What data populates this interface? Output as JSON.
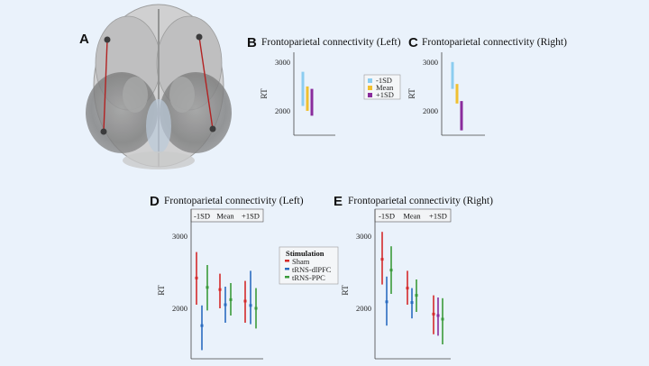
{
  "figure": {
    "panel_letters": [
      "A",
      "B",
      "C",
      "D",
      "E"
    ],
    "colors": {
      "minus1sd": "#8ccdf0",
      "mean": "#f0c030",
      "plus1sd": "#8a2c9c",
      "sham": "#d42a2a",
      "dlpfc": "#2a6cc0",
      "ppc": "#3a9a3a"
    }
  },
  "chart_data": [
    {
      "id": "B",
      "type": "errorbar",
      "title": "Frontoparietal connectivity (Left)",
      "ylabel": "RT",
      "yticks": [
        2000,
        3000
      ],
      "ylim": [
        1500,
        3200
      ],
      "legend": [
        "-1SD",
        "Mean",
        "+1SD"
      ],
      "series": [
        {
          "name": "-1SD",
          "low": 2100,
          "high": 2800,
          "color": "#8ccdf0"
        },
        {
          "name": "Mean",
          "low": 2000,
          "high": 2500,
          "color": "#f0c030"
        },
        {
          "name": "+1SD",
          "low": 1900,
          "high": 2450,
          "color": "#8a2c9c"
        }
      ]
    },
    {
      "id": "C",
      "type": "errorbar",
      "title": "Frontoparietal connectivity (Right)",
      "ylabel": "RT",
      "yticks": [
        2000,
        3000
      ],
      "ylim": [
        1500,
        3200
      ],
      "series": [
        {
          "name": "-1SD",
          "low": 2450,
          "high": 3000,
          "color": "#8ccdf0"
        },
        {
          "name": "Mean",
          "low": 2150,
          "high": 2550,
          "color": "#f0c030"
        },
        {
          "name": "+1SD",
          "low": 1600,
          "high": 2200,
          "color": "#8a2c9c"
        }
      ]
    },
    {
      "id": "D",
      "type": "errorbar",
      "title": "Frontoparietal connectivity (Left)",
      "ylabel": "RT",
      "yticks": [
        2000,
        3000
      ],
      "ylim": [
        1300,
        3200
      ],
      "facets": [
        "-1SD",
        "Mean",
        "+1SD"
      ],
      "legend_title": "Stimulation",
      "legend": [
        "Sham",
        "tRNS-dlPFC",
        "tRNS-PPC"
      ],
      "groups": [
        {
          "facet": "-1SD",
          "series": [
            {
              "name": "Sham",
              "low": 2050,
              "high": 2780,
              "center": 2420,
              "color": "#d42a2a"
            },
            {
              "name": "tRNS-dlPFC",
              "low": 1420,
              "high": 2040,
              "center": 1760,
              "color": "#2a6cc0"
            },
            {
              "name": "tRNS-PPC",
              "low": 1970,
              "high": 2600,
              "center": 2290,
              "color": "#3a9a3a"
            }
          ]
        },
        {
          "facet": "Mean",
          "series": [
            {
              "name": "Sham",
              "low": 2000,
              "high": 2480,
              "center": 2260,
              "color": "#d42a2a"
            },
            {
              "name": "tRNS-dlPFC",
              "low": 1800,
              "high": 2300,
              "center": 2050,
              "color": "#2a6cc0"
            },
            {
              "name": "tRNS-PPC",
              "low": 1900,
              "high": 2350,
              "center": 2120,
              "color": "#3a9a3a"
            }
          ]
        },
        {
          "facet": "+1SD",
          "series": [
            {
              "name": "Sham",
              "low": 1800,
              "high": 2380,
              "center": 2100,
              "color": "#d42a2a"
            },
            {
              "name": "tRNS-dlPFC",
              "low": 1780,
              "high": 2520,
              "center": 2040,
              "color": "#2a6cc0"
            },
            {
              "name": "tRNS-PPC",
              "low": 1720,
              "high": 2280,
              "center": 2000,
              "color": "#3a9a3a"
            }
          ]
        }
      ]
    },
    {
      "id": "E",
      "type": "errorbar",
      "title": "Frontoparietal connectivity (Right)",
      "ylabel": "RT",
      "yticks": [
        2000,
        3000
      ],
      "ylim": [
        1300,
        3200
      ],
      "facets": [
        "-1SD",
        "Mean",
        "+1SD"
      ],
      "groups": [
        {
          "facet": "-1SD",
          "series": [
            {
              "name": "Sham",
              "low": 2330,
              "high": 3060,
              "center": 2680,
              "color": "#d42a2a"
            },
            {
              "name": "tRNS-dlPFC",
              "low": 1760,
              "high": 2440,
              "center": 2090,
              "color": "#2a6cc0"
            },
            {
              "name": "tRNS-PPC",
              "low": 2200,
              "high": 2860,
              "center": 2530,
              "color": "#3a9a3a"
            }
          ]
        },
        {
          "facet": "Mean",
          "series": [
            {
              "name": "Sham",
              "low": 2050,
              "high": 2520,
              "center": 2280,
              "color": "#d42a2a"
            },
            {
              "name": "tRNS-dlPFC",
              "low": 1860,
              "high": 2280,
              "center": 2080,
              "color": "#2a6cc0"
            },
            {
              "name": "tRNS-PPC",
              "low": 1950,
              "high": 2400,
              "center": 2180,
              "color": "#3a9a3a"
            }
          ]
        },
        {
          "facet": "+1SD",
          "series": [
            {
              "name": "Sham",
              "low": 1640,
              "high": 2180,
              "center": 1920,
              "color": "#d42a2a"
            },
            {
              "name": "tRNS-dlPFC",
              "low": 1620,
              "high": 2150,
              "center": 1900,
              "color": "#8a2c9c"
            },
            {
              "name": "tRNS-PPC",
              "low": 1500,
              "high": 2140,
              "center": 1850,
              "color": "#3a9a3a"
            }
          ]
        }
      ]
    }
  ]
}
